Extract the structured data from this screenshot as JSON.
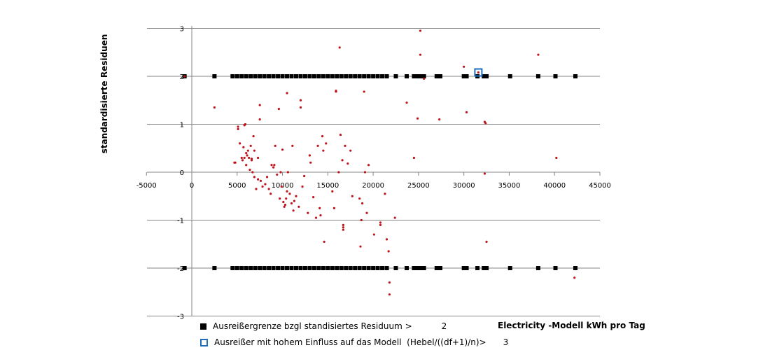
{
  "chart_data": {
    "type": "scatter",
    "title": "",
    "xlabel": "Electricity -Modell kWh pro Tag",
    "ylabel": "standardisierte Residuen",
    "xlim": [
      -5000,
      45000
    ],
    "ylim": [
      -3,
      3
    ],
    "x_ticks": [
      "-5000",
      "0",
      "5000",
      "10000",
      "15000",
      "20000",
      "25000",
      "30000",
      "35000",
      "40000",
      "45000"
    ],
    "y_ticks": [
      "3",
      "2",
      "1",
      "0",
      "-1",
      "-2",
      "-3"
    ],
    "x_tick_values": [
      -5000,
      0,
      5000,
      10000,
      15000,
      20000,
      25000,
      30000,
      35000,
      40000,
      45000
    ],
    "y_tick_values": [
      3,
      2,
      1,
      0,
      -1,
      -2,
      -3
    ],
    "grid": "horizontal",
    "legend": [
      {
        "marker": "black-square",
        "label": "Ausreißergrenze bzgl standisiertes Residuum >",
        "value": "2"
      },
      {
        "marker": "blue-hollow-square",
        "label": "Ausreißer mit hohem Einfluss auf das Modell  (Hebel/((df+1)/n)>",
        "value": "3"
      }
    ],
    "colors": {
      "residuals": "#c0141c",
      "limit": "#000000",
      "influence": "#1f6fbf",
      "grid": "#868686"
    },
    "series": [
      {
        "name": "standardisierte Residuen",
        "marker": "dot",
        "points": [
          [
            -800,
            2.0
          ],
          [
            2500,
            1.35
          ],
          [
            4700,
            0.2
          ],
          [
            4800,
            0.2
          ],
          [
            5100,
            0.9
          ],
          [
            5100,
            0.95
          ],
          [
            5300,
            0.6
          ],
          [
            5500,
            0.3
          ],
          [
            5600,
            0.25
          ],
          [
            5700,
            0.52
          ],
          [
            5800,
            0.98
          ],
          [
            5800,
            0.3
          ],
          [
            5900,
            1.0
          ],
          [
            6000,
            0.15
          ],
          [
            6000,
            0.4
          ],
          [
            6100,
            0.35
          ],
          [
            6200,
            0.45
          ],
          [
            6300,
            0.3
          ],
          [
            6400,
            0.05
          ],
          [
            6500,
            0.55
          ],
          [
            6600,
            0.28
          ],
          [
            6600,
            0.25
          ],
          [
            6700,
            0.0
          ],
          [
            6800,
            0.75
          ],
          [
            6900,
            0.45
          ],
          [
            6900,
            -0.1
          ],
          [
            7100,
            -0.35
          ],
          [
            7300,
            0.3
          ],
          [
            7300,
            -0.15
          ],
          [
            7500,
            1.1
          ],
          [
            7500,
            1.4
          ],
          [
            7600,
            -0.18
          ],
          [
            7800,
            -0.3
          ],
          [
            8100,
            -0.25
          ],
          [
            8300,
            -0.1
          ],
          [
            8500,
            -0.35
          ],
          [
            8700,
            -0.45
          ],
          [
            8800,
            0.15
          ],
          [
            9000,
            0.1
          ],
          [
            9100,
            0.15
          ],
          [
            9200,
            0.55
          ],
          [
            9400,
            -0.05
          ],
          [
            9600,
            1.32
          ],
          [
            9700,
            -0.55
          ],
          [
            9800,
            0.0
          ],
          [
            9900,
            -0.3
          ],
          [
            10000,
            0.47
          ],
          [
            10100,
            -0.62
          ],
          [
            10200,
            -0.72
          ],
          [
            10300,
            -0.68
          ],
          [
            10400,
            -0.55
          ],
          [
            10500,
            1.65
          ],
          [
            10500,
            -0.4
          ],
          [
            10600,
            0.0
          ],
          [
            10800,
            -0.45
          ],
          [
            11000,
            -0.65
          ],
          [
            11100,
            0.55
          ],
          [
            11200,
            -0.8
          ],
          [
            11300,
            -0.6
          ],
          [
            11500,
            -0.5
          ],
          [
            11800,
            -0.72
          ],
          [
            12000,
            1.5
          ],
          [
            12000,
            1.35
          ],
          [
            12200,
            -0.3
          ],
          [
            12400,
            -0.08
          ],
          [
            12800,
            -0.85
          ],
          [
            13000,
            0.35
          ],
          [
            13100,
            0.2
          ],
          [
            13400,
            -0.52
          ],
          [
            13700,
            -0.95
          ],
          [
            13900,
            0.55
          ],
          [
            14100,
            -0.75
          ],
          [
            14200,
            -0.9
          ],
          [
            14400,
            0.75
          ],
          [
            14500,
            0.45
          ],
          [
            14600,
            -1.45
          ],
          [
            14800,
            0.6
          ],
          [
            15500,
            -0.4
          ],
          [
            15700,
            -0.75
          ],
          [
            15900,
            1.7
          ],
          [
            15900,
            1.68
          ],
          [
            16200,
            0.0
          ],
          [
            16400,
            0.78
          ],
          [
            16600,
            0.25
          ],
          [
            16700,
            -1.1
          ],
          [
            16700,
            -1.15
          ],
          [
            16700,
            -1.2
          ],
          [
            16900,
            0.55
          ],
          [
            17200,
            0.18
          ],
          [
            17500,
            0.45
          ],
          [
            17700,
            -0.5
          ],
          [
            18500,
            -0.55
          ],
          [
            18600,
            -1.55
          ],
          [
            18700,
            -1.0
          ],
          [
            18800,
            -0.65
          ],
          [
            19000,
            1.68
          ],
          [
            19100,
            0.0
          ],
          [
            19300,
            -0.85
          ],
          [
            19500,
            0.15
          ],
          [
            20100,
            -1.3
          ],
          [
            20800,
            -1.1
          ],
          [
            20800,
            -1.05
          ],
          [
            21300,
            -0.45
          ],
          [
            21500,
            -1.4
          ],
          [
            21700,
            -1.65
          ],
          [
            21800,
            -2.3
          ],
          [
            21800,
            -2.55
          ],
          [
            22400,
            -0.95
          ],
          [
            23700,
            1.45
          ],
          [
            24500,
            0.3
          ],
          [
            24900,
            1.12
          ],
          [
            25200,
            2.45
          ],
          [
            25200,
            2.95
          ],
          [
            25600,
            1.95
          ],
          [
            27300,
            1.1
          ],
          [
            30000,
            2.2
          ],
          [
            30300,
            1.25
          ],
          [
            31600,
            2.08
          ],
          [
            32300,
            1.05
          ],
          [
            32400,
            1.02
          ],
          [
            32300,
            -0.03
          ],
          [
            16300,
            2.6
          ],
          [
            38200,
            2.45
          ],
          [
            40200,
            0.3
          ],
          [
            32500,
            -1.45
          ],
          [
            42200,
            -2.2
          ]
        ]
      },
      {
        "name": "Ausreißergrenze bzgl standisiertes Residuum > 2",
        "marker": "black-square",
        "y_values": [
          2,
          -2
        ],
        "x": [
          -800,
          2500,
          4500,
          5000,
          5500,
          6000,
          6500,
          7000,
          7500,
          8000,
          8500,
          9000,
          9500,
          10000,
          10500,
          11000,
          11500,
          12000,
          12500,
          13000,
          13500,
          14000,
          14500,
          15000,
          15500,
          16000,
          16500,
          17000,
          17500,
          18000,
          18500,
          19000,
          19500,
          20000,
          20500,
          21000,
          21500,
          22500,
          23700,
          24500,
          24900,
          25200,
          25600,
          27000,
          27400,
          30000,
          30300,
          31500,
          32200,
          32500,
          35100,
          38200,
          40100,
          42300
        ]
      },
      {
        "name": "Ausreißer mit hohem Einfluss auf das Modell",
        "marker": "blue-hollow-square",
        "points": [
          [
            31600,
            2.08
          ]
        ]
      }
    ]
  }
}
